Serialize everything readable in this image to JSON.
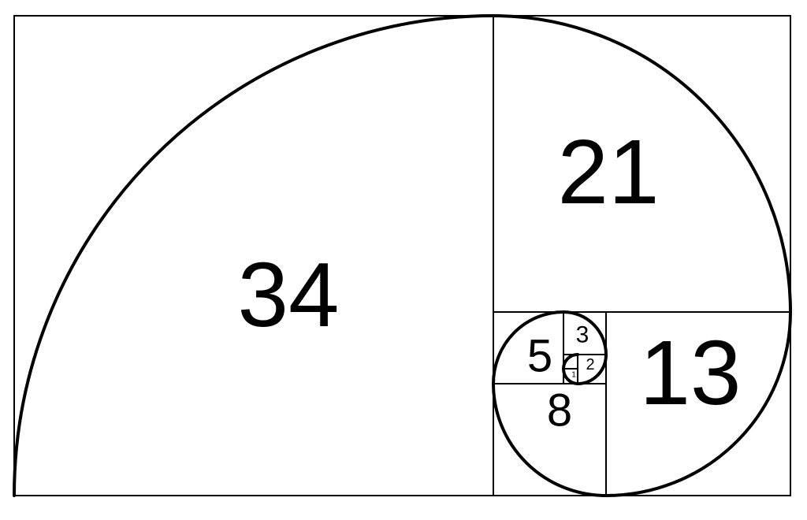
{
  "diagram": {
    "squares": [
      {
        "label": "34"
      },
      {
        "label": "21"
      },
      {
        "label": "13"
      },
      {
        "label": "8"
      },
      {
        "label": "5"
      },
      {
        "label": "3"
      },
      {
        "label": "2"
      },
      {
        "label": "1"
      },
      {
        "label": "1"
      }
    ],
    "colors": {
      "stroke": "#000000",
      "background": "#ffffff"
    }
  }
}
